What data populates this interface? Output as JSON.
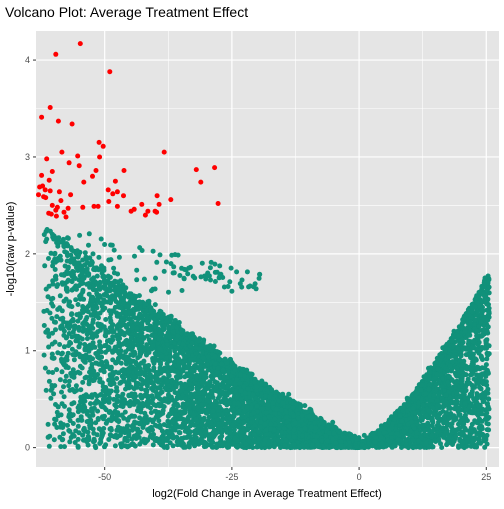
{
  "chart_data": {
    "type": "scatter",
    "title": "Volcano Plot: Average Treatment Effect",
    "xlabel": "log2(Fold Change in Average Treatment Effect)",
    "ylabel": "-log10(raw p-value)",
    "xlim": [
      -63.5,
      27.5
    ],
    "ylim": [
      -0.2,
      4.3
    ],
    "x_ticks": [
      -50,
      -25,
      0,
      25
    ],
    "x_tick_labels": [
      "-50",
      "-25",
      "0",
      "25"
    ],
    "y_ticks": [
      0,
      1,
      2,
      3,
      4
    ],
    "y_tick_labels": [
      "0",
      "1",
      "2",
      "3",
      "4"
    ],
    "grid": true,
    "legend": "none",
    "colors": {
      "panel_background": "#e5e5e5",
      "grid_major": "#ffffff",
      "significant": "#ff0000",
      "not_significant": "#11917a"
    },
    "series": [
      {
        "values": [
          [
            -54.8,
            4.17
          ],
          [
            -59.6,
            4.06
          ],
          [
            -49.0,
            3.88
          ],
          [
            -60.7,
            3.51
          ],
          [
            -62.4,
            3.41
          ],
          [
            -59.1,
            3.37
          ],
          [
            -56.4,
            3.34
          ],
          [
            -51.1,
            3.15
          ],
          [
            -50.3,
            3.11
          ],
          [
            -38.3,
            3.05
          ],
          [
            -58.4,
            3.05
          ],
          [
            -55.3,
            3.01
          ],
          [
            -51.0,
            3.0
          ],
          [
            -61.4,
            2.98
          ],
          [
            -57.0,
            2.94
          ],
          [
            -55.0,
            2.91
          ],
          [
            -28.4,
            2.89
          ],
          [
            -32.0,
            2.87
          ],
          [
            -46.2,
            2.86
          ],
          [
            -51.7,
            2.86
          ],
          [
            -60.3,
            2.85
          ],
          [
            -62.4,
            2.81
          ],
          [
            -52.4,
            2.8
          ],
          [
            -60.9,
            2.76
          ],
          [
            -47.9,
            2.75
          ],
          [
            -54.1,
            2.74
          ],
          [
            -31.1,
            2.74
          ],
          [
            -62.2,
            2.7
          ],
          [
            -62.8,
            2.69
          ],
          [
            -61.7,
            2.66
          ],
          [
            -49.3,
            2.66
          ],
          [
            -60.7,
            2.65
          ],
          [
            -58.9,
            2.64
          ],
          [
            -47.5,
            2.64
          ],
          [
            -48.4,
            2.62
          ],
          [
            -63.0,
            2.61
          ],
          [
            -56.7,
            2.61
          ],
          [
            -46.3,
            2.6
          ],
          [
            -39.7,
            2.6
          ],
          [
            -62.0,
            2.59
          ],
          [
            -61.6,
            2.58
          ],
          [
            -37.0,
            2.56
          ],
          [
            -58.6,
            2.55
          ],
          [
            -49.2,
            2.54
          ],
          [
            -27.7,
            2.52
          ],
          [
            -39.3,
            2.51
          ],
          [
            -42.7,
            2.51
          ],
          [
            -60.3,
            2.5
          ],
          [
            -47.5,
            2.49
          ],
          [
            -51.3,
            2.49
          ],
          [
            -52.1,
            2.49
          ],
          [
            -59.3,
            2.48
          ],
          [
            -54.3,
            2.48
          ],
          [
            -57.2,
            2.47
          ],
          [
            -44.2,
            2.46
          ],
          [
            -59.6,
            2.45
          ],
          [
            -41.5,
            2.44
          ],
          [
            -40.1,
            2.44
          ],
          [
            -44.8,
            2.44
          ],
          [
            -58.0,
            2.43
          ],
          [
            -39.8,
            2.43
          ],
          [
            -61.0,
            2.42
          ],
          [
            -60.5,
            2.41
          ],
          [
            -42.0,
            2.4
          ],
          [
            -59.5,
            2.39
          ],
          [
            -57.6,
            2.38
          ]
        ]
      }
    ]
  }
}
